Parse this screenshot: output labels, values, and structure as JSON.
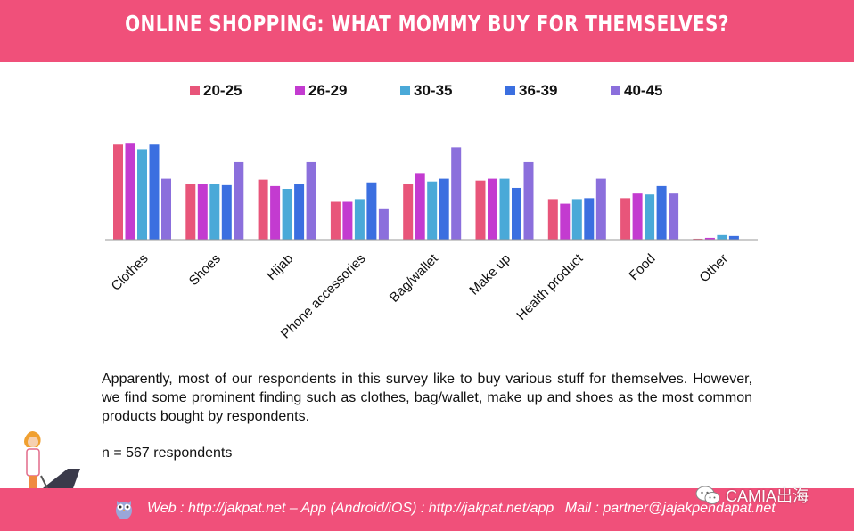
{
  "header": {
    "title": "ONLINE SHOPPING: WHAT MOMMY BUY FOR THEMSELVES?"
  },
  "chart_data": {
    "type": "bar",
    "title": "ONLINE SHOPPING: WHAT MOMMY BUY FOR THEMSELVES?",
    "categories": [
      "Clothes",
      "Shoes",
      "Hijab",
      "Phone accessories",
      "Bag/wallet",
      "Make up",
      "Health product",
      "Food",
      "Other"
    ],
    "series": [
      {
        "name": "20-25",
        "color": "#e8557a",
        "values": [
          103,
          60,
          65,
          41,
          60,
          64,
          44,
          45,
          1
        ]
      },
      {
        "name": "26-29",
        "color": "#c33bd0",
        "values": [
          104,
          60,
          58,
          41,
          72,
          66,
          39,
          50,
          2
        ]
      },
      {
        "name": "30-35",
        "color": "#4aa9d8",
        "values": [
          98,
          60,
          55,
          44,
          63,
          66,
          44,
          49,
          5
        ]
      },
      {
        "name": "36-39",
        "color": "#3b6fe0",
        "values": [
          103,
          59,
          60,
          62,
          66,
          56,
          45,
          58,
          4
        ]
      },
      {
        "name": "40-45",
        "color": "#8b6fdc",
        "values": [
          66,
          84,
          84,
          33,
          100,
          84,
          66,
          50,
          0
        ]
      }
    ],
    "xlabel": "",
    "ylabel": "",
    "ylim": [
      0,
      110
    ],
    "grid": false,
    "legend": "top"
  },
  "description": "Apparently, most of our respondents in this survey like to buy various stuff for themselves. However, we find some prominent finding such as clothes, bag/wallet, make up and shoes as the most common products bought by respondents.",
  "sample_size": "n = 567 respondents",
  "footer": {
    "web": "Web : http://jakpat.net",
    "app": "– App (Android/iOS) : http://jakpat.net/app",
    "mail": "Mail : partner@jajakpendapat.net"
  },
  "watermark": {
    "text": "CAMIA出海",
    "icon": "wechat-icon"
  },
  "icons": {
    "owl": "owl-logo-icon",
    "illustration": "mother-with-stroller"
  }
}
